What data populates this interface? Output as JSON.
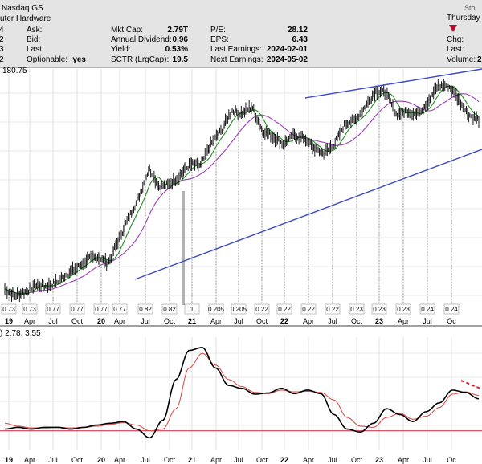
{
  "header": {
    "exchange": "Nasdaq GS",
    "industry": "uter Hardware",
    "day": "Thursday",
    "watermark": "Sto",
    "left_values": [
      "4",
      "2",
      "3",
      "2"
    ],
    "fields": [
      {
        "label": "Ask:",
        "value": ""
      },
      {
        "label": "Bid:",
        "value": ""
      },
      {
        "label": "Last:",
        "value": ""
      },
      {
        "label": "Optionable:",
        "value": "yes"
      },
      {
        "label": "Mkt Cap:",
        "value": "2.79T"
      },
      {
        "label": "Annual Dividend:",
        "value": "0.96"
      },
      {
        "label": "Yield:",
        "value": "0.53%"
      },
      {
        "label": "SCTR (LrgCap):",
        "value": "19.5"
      },
      {
        "label": "P/E:",
        "value": "28.12"
      },
      {
        "label": "EPS:",
        "value": "6.43"
      },
      {
        "label": "Last Earnings:",
        "value": "2024-02-01"
      },
      {
        "label": "Next Earnings:",
        "value": "2024-05-02"
      }
    ],
    "right_labels": [
      "Chg:",
      "Last:",
      "Volume:"
    ],
    "volume_partial": "2"
  },
  "colors": {
    "price_bars": "#000000",
    "ma_short": "#1f8a1f",
    "ma_long": "#9b3fb5",
    "trendline": "#3b48c8",
    "macd_line": "#000000",
    "signal_line": "#d9534f",
    "zero_line": "#c2243f",
    "down_arrow": "#b0102a",
    "header_bg": "#e4e4e4"
  },
  "chart_data": [
    {
      "type": "candlestick",
      "price_label": "180.75",
      "x_ticks": [
        "19",
        "Apr",
        "Jul",
        "Oct",
        "20",
        "Apr",
        "Jul",
        "Oct",
        "21",
        "Apr",
        "Jul",
        "Oct",
        "22",
        "Apr",
        "Jul",
        "Oct",
        "23",
        "Apr",
        "Jul",
        "Oc"
      ],
      "dividends": [
        "0.73",
        "0.73",
        "0.77",
        "0.77",
        "0.77",
        "0.77",
        "0.82",
        "0.82",
        "1",
        "0.205",
        "0.205",
        "0.22",
        "0.22",
        "0.22",
        "0.22",
        "0.23",
        "0.23",
        "0.23",
        "0.24",
        "0.24"
      ],
      "split_label": "1",
      "price_path": [
        42,
        37,
        40,
        45,
        44,
        47,
        53,
        58,
        64,
        66,
        61,
        78,
        95,
        110,
        132,
        118,
        120,
        127,
        135,
        134,
        150,
        160,
        175,
        173,
        178,
        160,
        156,
        150,
        156,
        155,
        147,
        143,
        150,
        165,
        168,
        178,
        190,
        188,
        172,
        175,
        172,
        181,
        193,
        194,
        184,
        172,
        168
      ]
    },
    {
      "type": "line",
      "title": ") 2.78, 3.55",
      "x_ticks": [
        "19",
        "Apr",
        "Jul",
        "Oct",
        "20",
        "Apr",
        "Jul",
        "Oct",
        "21",
        "Apr",
        "Jul",
        "Oct",
        "22",
        "Apr",
        "Jul",
        "Oct",
        "23",
        "Apr",
        "Jul",
        "Oc"
      ],
      "macd": [
        -0.55,
        -0.52,
        -0.55,
        -0.52,
        -0.52,
        -0.55,
        -0.52,
        -0.48,
        -0.45,
        -0.42,
        -0.55,
        -0.7,
        -0.4,
        0.3,
        0.8,
        0.85,
        0.5,
        0.2,
        0.15,
        0.05,
        0.07,
        0.15,
        0.06,
        0.12,
        0.06,
        -0.3,
        -0.55,
        -0.6,
        -0.45,
        -0.2,
        -0.3,
        -0.42,
        -0.25,
        -0.1,
        0.12,
        0.08,
        -0.03
      ],
      "signal": [
        -0.45,
        -0.5,
        -0.53,
        -0.53,
        -0.52,
        -0.53,
        -0.52,
        -0.5,
        -0.47,
        -0.44,
        -0.48,
        -0.58,
        -0.55,
        -0.2,
        0.5,
        0.75,
        0.55,
        0.3,
        0.18,
        0.08,
        0.06,
        0.12,
        0.09,
        0.1,
        0.08,
        -0.05,
        -0.35,
        -0.5,
        -0.52,
        -0.35,
        -0.28,
        -0.38,
        -0.33,
        -0.18,
        0.05,
        0.09,
        0.03
      ],
      "zero_level": -0.58
    }
  ]
}
